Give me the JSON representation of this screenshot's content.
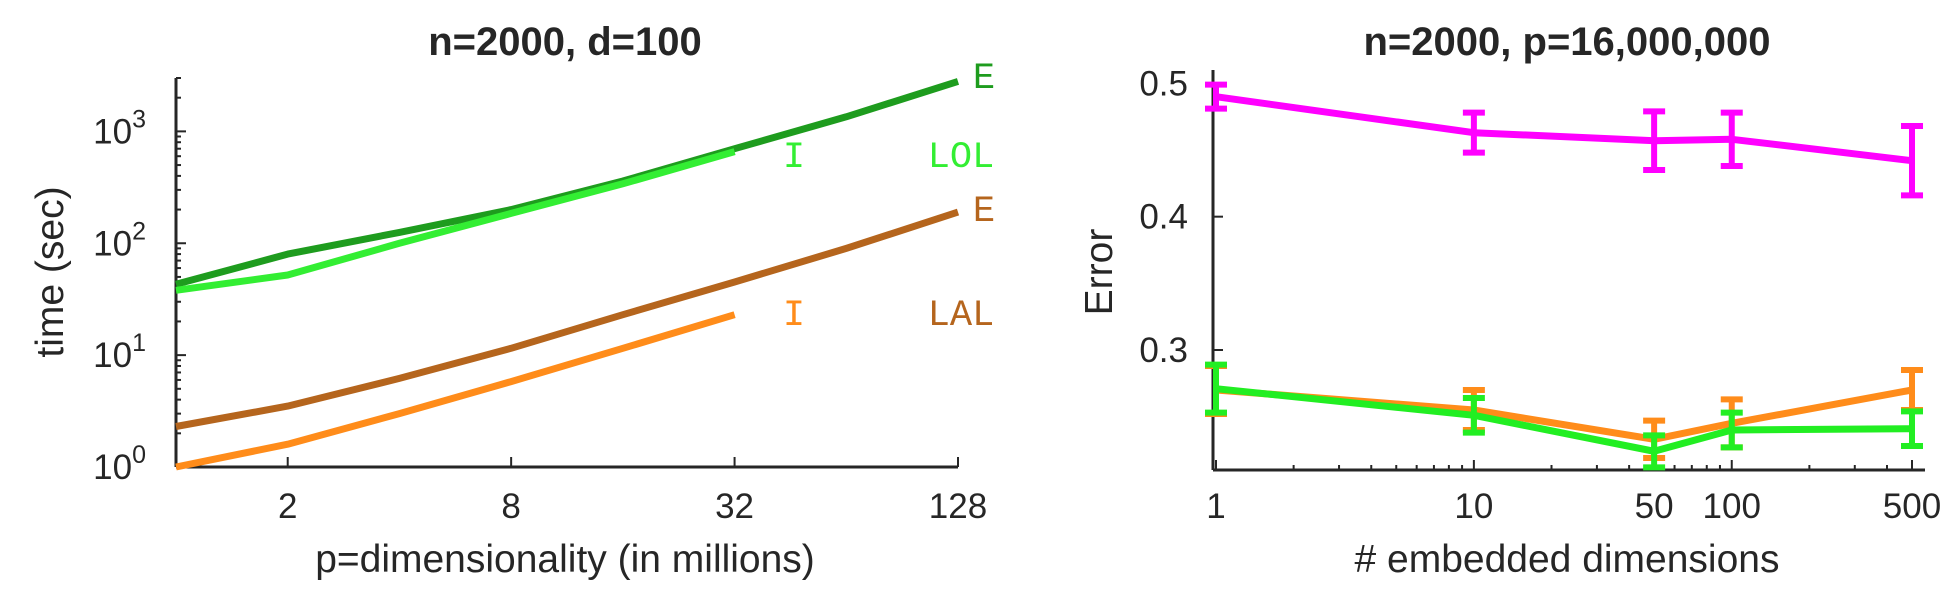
{
  "chart_data": [
    {
      "type": "line",
      "title": "n=2000, d=100",
      "xlabel": "p=dimensionality (in millions)",
      "ylabel": "time (sec)",
      "x_scale": "log2",
      "y_scale": "log10",
      "xlim": [
        1,
        128
      ],
      "ylim": [
        1,
        3000
      ],
      "x_ticks": [
        2,
        8,
        32,
        128
      ],
      "x_tick_labels": [
        "2",
        "8",
        "32",
        "128"
      ],
      "y_ticks": [
        1,
        10,
        100,
        1000
      ],
      "y_tick_labels": [
        {
          "base": "10",
          "exp": "0"
        },
        {
          "base": "10",
          "exp": "1"
        },
        {
          "base": "10",
          "exp": "2"
        },
        {
          "base": "10",
          "exp": "3"
        }
      ],
      "series": [
        {
          "name": "E",
          "color": "#1e9c1e",
          "x": [
            1,
            2,
            4,
            8,
            16,
            32,
            64,
            128
          ],
          "y": [
            43,
            80,
            125,
            200,
            360,
            700,
            1350,
            2800
          ]
        },
        {
          "name": "I",
          "color": "#33ee33",
          "x": [
            1,
            2,
            4,
            8,
            16,
            32
          ],
          "y": [
            38,
            52,
            100,
            185,
            340,
            660
          ]
        },
        {
          "name": "E",
          "color": "#b5651d",
          "x": [
            1,
            2,
            4,
            8,
            16,
            32,
            64,
            128
          ],
          "y": [
            2.3,
            3.5,
            6.2,
            11.5,
            23,
            45,
            90,
            190
          ]
        },
        {
          "name": "I",
          "color": "#ff8c1a",
          "x": [
            1,
            2,
            4,
            8,
            16,
            32
          ],
          "y": [
            1,
            1.6,
            3,
            5.8,
            11.5,
            23
          ]
        }
      ],
      "annotations": [
        {
          "text": "E",
          "color": "#1e9c1e"
        },
        {
          "text": "I",
          "color": "#33ee33"
        },
        {
          "text": "LOL",
          "color": "#33ee33"
        },
        {
          "text": "E",
          "color": "#b5651d"
        },
        {
          "text": "I",
          "color": "#ff8c1a"
        },
        {
          "text": "LAL",
          "color": "#b5651d"
        }
      ],
      "grid": false
    },
    {
      "type": "line",
      "title": "n=2000, p=16,000,000",
      "xlabel": "# embedded dimensions",
      "ylabel": "Error",
      "x_scale": "log10",
      "xlim": [
        1,
        500
      ],
      "ylim": [
        0.21,
        0.51
      ],
      "x_ticks": [
        1,
        10,
        50,
        100,
        500
      ],
      "x_tick_labels": [
        "1",
        "10",
        "50",
        "100",
        "500"
      ],
      "y_ticks": [
        0.3,
        0.4,
        0.5
      ],
      "y_tick_labels": [
        "0.3",
        "0.4",
        "0.5"
      ],
      "series": [
        {
          "color": "#ff00ff",
          "x": [
            1,
            10,
            50,
            100,
            500
          ],
          "y": [
            0.49,
            0.463,
            0.457,
            0.458,
            0.442
          ],
          "err": [
            0.009,
            0.015,
            0.022,
            0.02,
            0.026
          ]
        },
        {
          "color": "#ff8c1a",
          "x": [
            1,
            10,
            50,
            100,
            500
          ],
          "y": [
            0.27,
            0.255,
            0.233,
            0.245,
            0.27
          ],
          "err": [
            0.018,
            0.015,
            0.014,
            0.018,
            0.015
          ]
        },
        {
          "color": "#22ee22",
          "x": [
            1,
            10,
            50,
            100,
            500
          ],
          "y": [
            0.271,
            0.251,
            0.224,
            0.24,
            0.241
          ],
          "err": [
            0.018,
            0.013,
            0.012,
            0.013,
            0.013
          ]
        }
      ],
      "grid": false
    }
  ]
}
